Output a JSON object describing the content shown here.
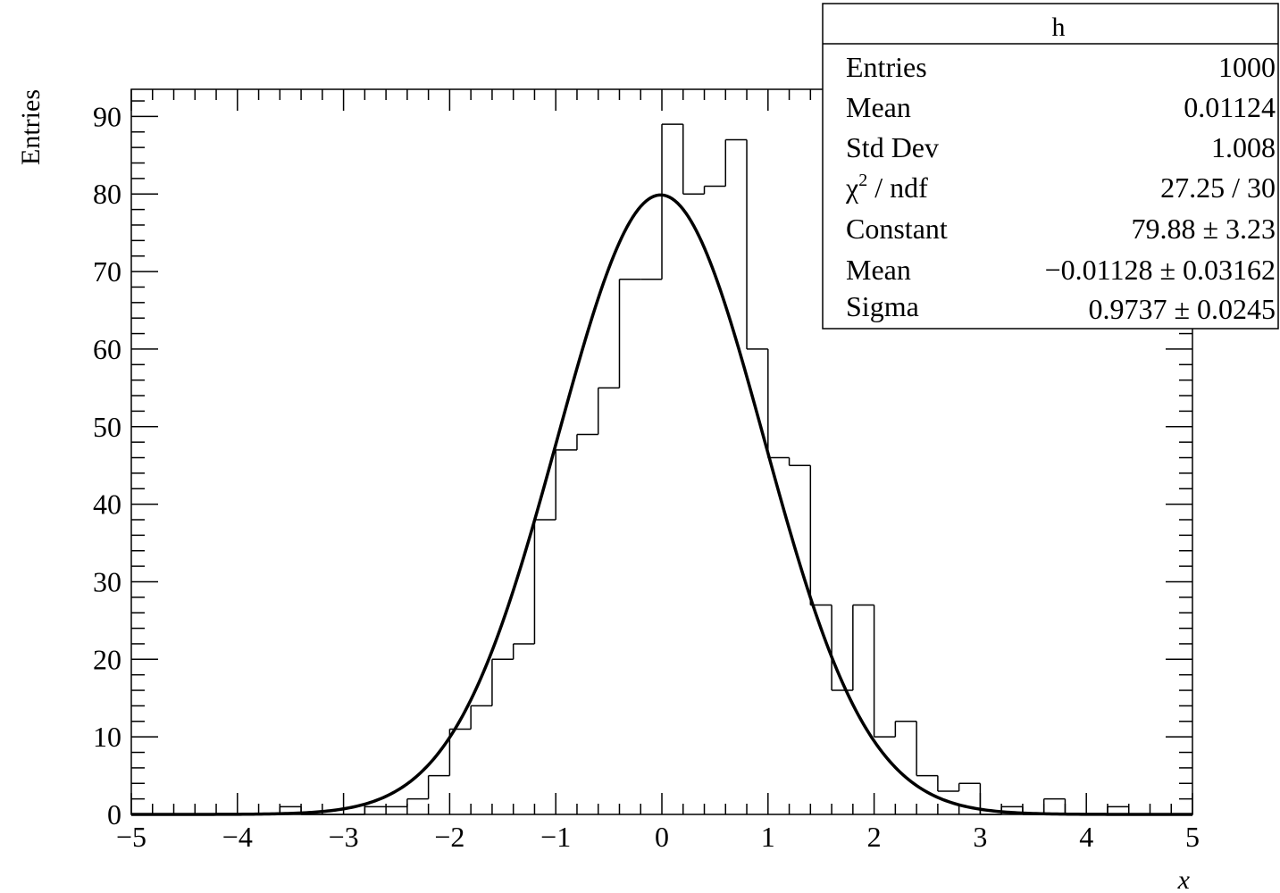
{
  "chart_data": {
    "type": "bar",
    "histogram": {
      "bin_edges": [
        -5,
        -4.8,
        -4.6,
        -4.4,
        -4.2,
        -4,
        -3.8,
        -3.6,
        -3.4,
        -3.2,
        -3,
        -2.8,
        -2.6,
        -2.4,
        -2.2,
        -2,
        -1.8,
        -1.6,
        -1.4,
        -1.2,
        -1,
        -0.8,
        -0.6,
        -0.4,
        -0.2,
        0,
        0.2,
        0.4,
        0.6,
        0.8,
        1,
        1.2,
        1.4,
        1.6,
        1.8,
        2,
        2.2,
        2.4,
        2.6,
        2.8,
        3,
        3.2,
        3.4,
        3.6,
        3.8,
        4,
        4.2,
        4.4,
        4.6,
        4.8,
        5
      ],
      "counts": [
        0,
        0,
        0,
        0,
        0,
        0,
        0,
        1,
        0,
        0,
        0,
        1,
        1,
        2,
        5,
        11,
        14,
        20,
        22,
        38,
        47,
        49,
        55,
        69,
        69,
        89,
        80,
        81,
        87,
        60,
        46,
        45,
        27,
        16,
        27,
        10,
        12,
        5,
        3,
        4,
        0,
        1,
        0,
        2,
        0,
        0,
        1,
        0,
        0,
        0
      ]
    },
    "fit": {
      "function": "gaus",
      "constant": 79.88,
      "mean": -0.01128,
      "sigma": 0.9737
    },
    "xlabel": "x",
    "ylabel": "Entries",
    "xlim": [
      -5,
      5
    ],
    "ylim": [
      0,
      93.5
    ],
    "x_ticks": [
      -5,
      -4,
      -3,
      -2,
      -1,
      0,
      1,
      2,
      3,
      4,
      5
    ],
    "x_tick_labels": [
      "−5",
      "−4",
      "−3",
      "−2",
      "−1",
      "0",
      "1",
      "2",
      "3",
      "4",
      "5"
    ],
    "y_ticks": [
      0,
      10,
      20,
      30,
      40,
      50,
      60,
      70,
      80,
      90
    ],
    "y_tick_labels": [
      "0",
      "10",
      "20",
      "30",
      "40",
      "50",
      "60",
      "70",
      "80",
      "90"
    ],
    "grid": false,
    "stats_box": {
      "placement": "top-right",
      "title": "h",
      "rows": [
        {
          "label": "Entries",
          "value": "1000"
        },
        {
          "label": "Mean",
          "value": "0.01124"
        },
        {
          "label": "Std Dev",
          "value": "1.008"
        },
        {
          "label": "χ",
          "sup": "2",
          "label_rest": " / ndf",
          "value": "27.25 / 30"
        },
        {
          "label": "Constant",
          "value": "79.88 ± 3.23"
        },
        {
          "label": "Mean",
          "value": "−0.01128 ± 0.03162"
        },
        {
          "label": "Sigma",
          "value": "0.9737 ± 0.0245"
        }
      ]
    },
    "colors": {
      "line": "#000000",
      "background": "#ffffff"
    }
  }
}
